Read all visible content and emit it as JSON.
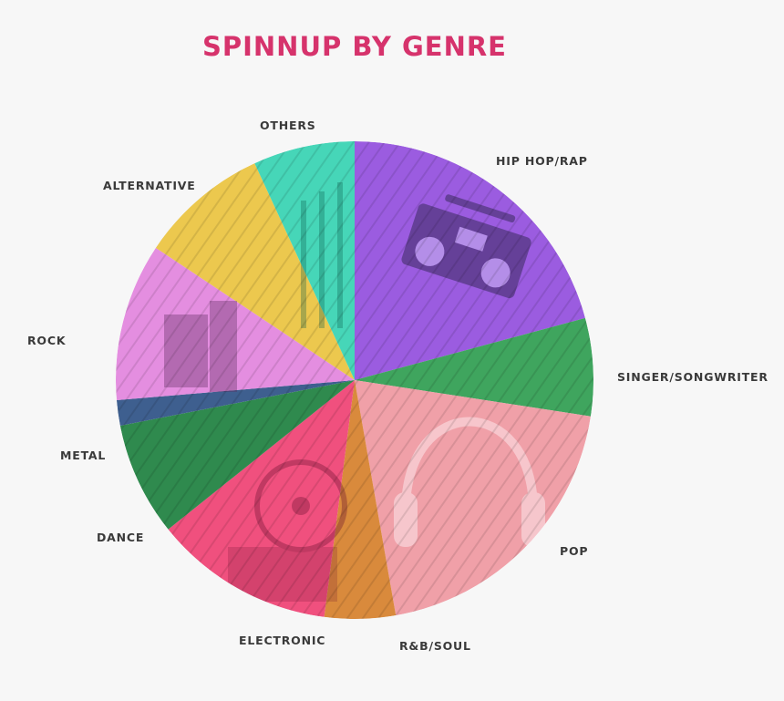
{
  "chart_data": {
    "type": "pie",
    "title": "SPINNUP BY GENRE",
    "title_color": "#d6336c",
    "label_color": "#3a3a3a",
    "start": "top",
    "direction": "clockwise",
    "series": [
      {
        "slices": [
          {
            "label": "HIP HOP/RAP",
            "value": 23.0,
            "color": "#9b5ce0"
          },
          {
            "label": "SINGER/SONGWRITER",
            "value": 7.3,
            "color": "#3fa55e"
          },
          {
            "label": "POP",
            "value": 21.9,
            "color": "#f0a0a8"
          },
          {
            "label": "R&B/SOUL",
            "value": 5.3,
            "color": "#d98a3c"
          },
          {
            "label": "ELECTRONIC",
            "value": 13.5,
            "color": "#f0507e"
          },
          {
            "label": "DANCE",
            "value": 8.5,
            "color": "#2f8a4e"
          },
          {
            "label": "METAL",
            "value": 1.9,
            "color": "#3e5f8f"
          },
          {
            "label": "ROCK",
            "value": 11.8,
            "color": "#e48ee0"
          },
          {
            "label": "ALTERNATIVE",
            "value": 9.7,
            "color": "#ecc84e"
          },
          {
            "label": "OTHERS",
            "value": 7.6,
            "color": "#46d6b8"
          }
        ]
      }
    ]
  }
}
